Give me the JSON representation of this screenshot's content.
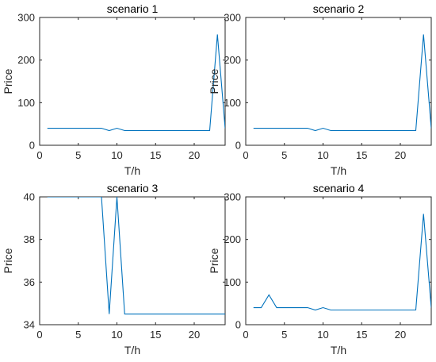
{
  "chart_data": [
    {
      "type": "line",
      "title": "scenario 1",
      "xlabel": "T/h",
      "ylabel": "Price",
      "xlim": [
        0,
        24
      ],
      "ylim": [
        0,
        300
      ],
      "xticks": [
        0,
        5,
        10,
        15,
        20
      ],
      "yticks": [
        0,
        100,
        200,
        300
      ],
      "grid": false,
      "series": [
        {
          "color": "#0072BD",
          "x": [
            1,
            2,
            3,
            4,
            5,
            6,
            7,
            8,
            9,
            10,
            11,
            12,
            13,
            14,
            15,
            16,
            17,
            18,
            19,
            20,
            21,
            22,
            23,
            24
          ],
          "values": [
            40,
            40,
            40,
            40,
            40,
            40,
            40,
            40,
            34.5,
            40,
            34.5,
            34.5,
            34.5,
            34.5,
            34.5,
            34.5,
            34.5,
            34.5,
            34.5,
            34.5,
            34.5,
            34.5,
            260,
            40
          ]
        }
      ]
    },
    {
      "type": "line",
      "title": "scenario 2",
      "xlabel": "T/h",
      "ylabel": "Price",
      "xlim": [
        0,
        24
      ],
      "ylim": [
        0,
        300
      ],
      "xticks": [
        0,
        5,
        10,
        15,
        20
      ],
      "yticks": [
        0,
        100,
        200,
        300
      ],
      "grid": false,
      "series": [
        {
          "color": "#0072BD",
          "x": [
            1,
            2,
            3,
            4,
            5,
            6,
            7,
            8,
            9,
            10,
            11,
            12,
            13,
            14,
            15,
            16,
            17,
            18,
            19,
            20,
            21,
            22,
            23,
            24
          ],
          "values": [
            40,
            40,
            40,
            40,
            40,
            40,
            40,
            40,
            34.5,
            40,
            34.5,
            34.5,
            34.5,
            34.5,
            34.5,
            34.5,
            34.5,
            34.5,
            34.5,
            34.5,
            34.5,
            34.5,
            260,
            40
          ]
        }
      ]
    },
    {
      "type": "line",
      "title": "scenario 3",
      "xlabel": "T/h",
      "ylabel": "Price",
      "xlim": [
        0,
        24
      ],
      "ylim": [
        34,
        40
      ],
      "xticks": [
        0,
        5,
        10,
        15,
        20
      ],
      "yticks": [
        34,
        36,
        38,
        40
      ],
      "grid": false,
      "series": [
        {
          "color": "#0072BD",
          "x": [
            1,
            2,
            3,
            4,
            5,
            6,
            7,
            8,
            9,
            10,
            11,
            12,
            13,
            14,
            15,
            16,
            17,
            18,
            19,
            20,
            21,
            22,
            23,
            24
          ],
          "values": [
            40,
            40,
            40,
            40,
            40,
            40,
            40,
            40,
            34.5,
            40,
            34.5,
            34.5,
            34.5,
            34.5,
            34.5,
            34.5,
            34.5,
            34.5,
            34.5,
            34.5,
            34.5,
            34.5,
            34.5,
            34.5
          ]
        }
      ]
    },
    {
      "type": "line",
      "title": "scenario 4",
      "xlabel": "T/h",
      "ylabel": "Price",
      "xlim": [
        0,
        24
      ],
      "ylim": [
        0,
        300
      ],
      "xticks": [
        0,
        5,
        10,
        15,
        20
      ],
      "yticks": [
        0,
        100,
        200,
        300
      ],
      "grid": false,
      "series": [
        {
          "color": "#0072BD",
          "x": [
            1,
            2,
            3,
            4,
            5,
            6,
            7,
            8,
            9,
            10,
            11,
            12,
            13,
            14,
            15,
            16,
            17,
            18,
            19,
            20,
            21,
            22,
            23,
            24
          ],
          "values": [
            40,
            40,
            70,
            40,
            40,
            40,
            40,
            40,
            34.5,
            40,
            34.5,
            34.5,
            34.5,
            34.5,
            34.5,
            34.5,
            34.5,
            34.5,
            34.5,
            34.5,
            34.5,
            34.5,
            260,
            40
          ]
        }
      ]
    }
  ]
}
